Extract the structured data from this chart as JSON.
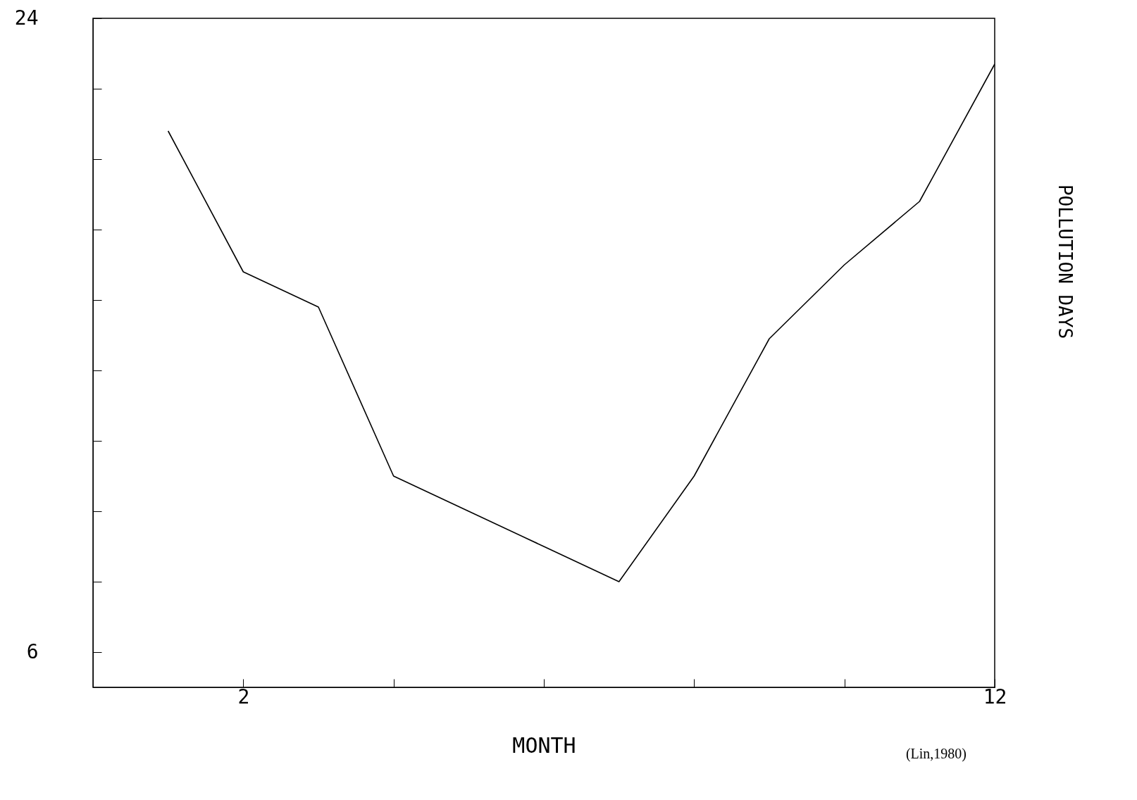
{
  "chart_data": {
    "type": "line",
    "xlabel": "MONTH",
    "ylabel": "POLLUTION DAYS",
    "annotations": [
      "(Lin,1980)"
    ],
    "x": [
      1,
      2,
      3,
      4,
      5,
      6,
      7,
      8,
      9,
      10,
      11,
      12
    ],
    "series": [
      {
        "color": "#000000",
        "values": [
          20.8,
          16.8,
          15.8,
          11.0,
          10.0,
          9.0,
          8.0,
          11.0,
          14.9,
          17.0,
          18.8,
          22.7
        ]
      }
    ],
    "xlim": [
      0,
      12
    ],
    "xticks": [
      2,
      {
        "value": 4,
        "label": null
      },
      {
        "value": 6,
        "label": null
      },
      {
        "value": 8,
        "label": null
      },
      {
        "value": 10,
        "label": null
      },
      12
    ],
    "ylim": [
      5,
      24
    ],
    "yticks": [
      6,
      {
        "value": 8,
        "label": null
      },
      {
        "value": 10,
        "label": null
      },
      {
        "value": 12,
        "label": null
      },
      {
        "value": 14,
        "label": null
      },
      {
        "value": 16,
        "label": null
      },
      {
        "value": 18,
        "label": null
      },
      {
        "value": 20,
        "label": null
      },
      {
        "value": 22,
        "label": null
      },
      24
    ],
    "grid": false,
    "marker": "none",
    "line_style": "solid"
  }
}
